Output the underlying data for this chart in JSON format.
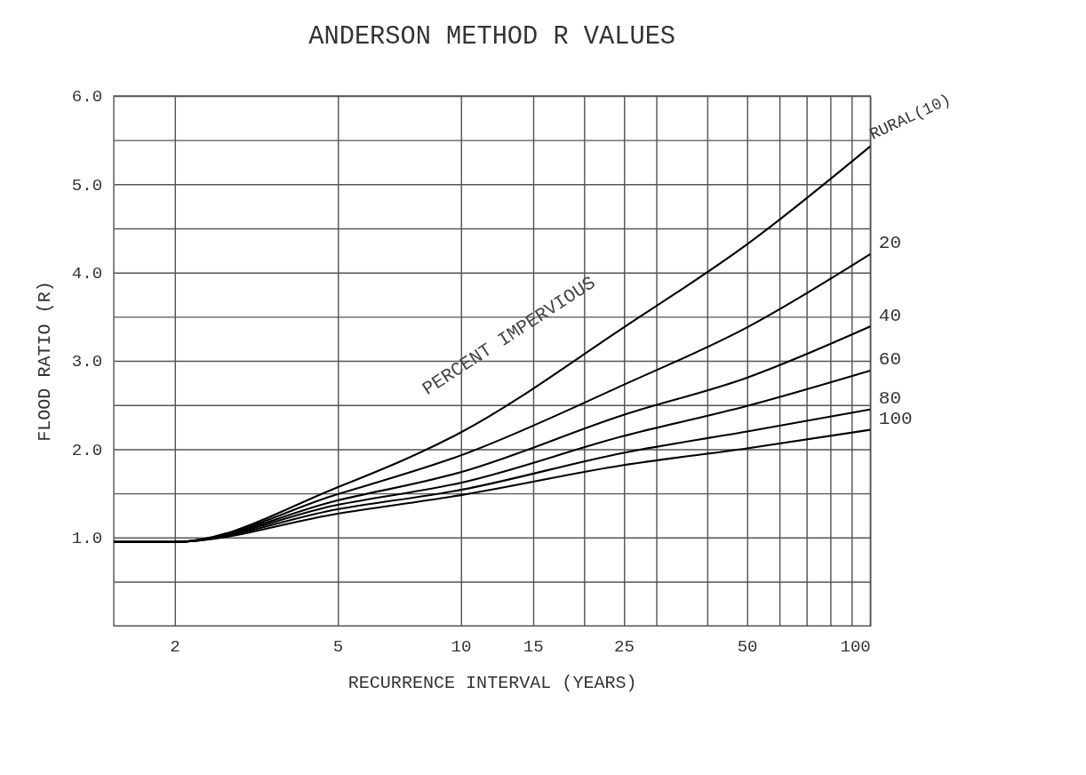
{
  "chart_data": {
    "type": "line",
    "title": "ANDERSON METHOD   R VALUES",
    "xlabel": "RECURRENCE INTERVAL (YEARS)",
    "ylabel": "FLOOD RATIO (R)",
    "log": "x",
    "grid": true,
    "legend": false,
    "marker": "none",
    "line_style": "solid",
    "xlim": [
      1.42,
      100
    ],
    "ylim": [
      0,
      6
    ],
    "xticks": [
      2,
      5,
      10,
      15,
      {
        "value": 20,
        "label": null
      },
      25,
      {
        "value": 30,
        "label": null
      },
      {
        "value": 40,
        "label": null
      },
      50,
      {
        "value": 60,
        "label": null
      },
      {
        "value": 70,
        "label": null
      },
      {
        "value": 80,
        "label": null
      },
      {
        "value": 90,
        "label": null
      },
      100
    ],
    "yticks": [
      {
        "value": 0.5,
        "label": null
      },
      {
        "value": 1,
        "label": "1.0"
      },
      {
        "value": 1.5,
        "label": null
      },
      {
        "value": 2,
        "label": "2.0"
      },
      {
        "value": 2.5,
        "label": null
      },
      {
        "value": 3,
        "label": "3.0"
      },
      {
        "value": 3.5,
        "label": null
      },
      {
        "value": 4,
        "label": "4.0"
      },
      {
        "value": 4.5,
        "label": null
      },
      {
        "value": 5,
        "label": "5.0"
      },
      {
        "value": 5.5,
        "label": null
      },
      {
        "value": 6,
        "label": "6.0"
      }
    ],
    "x": [
      1.42,
      2,
      5,
      10,
      25,
      50,
      100
    ],
    "series": [
      {
        "name": "RURAL(10)",
        "color": "#000000",
        "values": [
          0.95,
          0.95,
          1.57,
          2.19,
          3.38,
          4.32,
          5.43
        ]
      },
      {
        "name": "20",
        "color": "#000000",
        "values": [
          0.95,
          0.95,
          1.49,
          1.93,
          2.73,
          3.38,
          4.21
        ]
      },
      {
        "name": "40",
        "color": "#000000",
        "values": [
          0.95,
          0.95,
          1.42,
          1.74,
          2.39,
          2.81,
          3.39
        ]
      },
      {
        "name": "60",
        "color": "#000000",
        "values": [
          0.95,
          0.95,
          1.37,
          1.62,
          2.15,
          2.49,
          2.89
        ]
      },
      {
        "name": "80",
        "color": "#000000",
        "values": [
          0.95,
          0.95,
          1.32,
          1.54,
          1.96,
          2.2,
          2.45
        ]
      },
      {
        "name": "100",
        "color": "#000000",
        "values": [
          0.95,
          0.95,
          1.27,
          1.48,
          1.82,
          2.01,
          2.22
        ]
      }
    ],
    "annotations": [
      "PERCENT IMPERVIOUS"
    ]
  }
}
